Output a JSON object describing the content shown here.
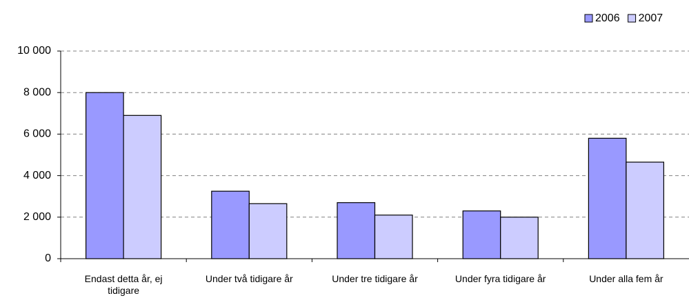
{
  "chart_data": {
    "type": "bar",
    "categories": [
      "Endast detta år, ej tidigare",
      "Under två tidigare år",
      "Under tre tidigare år",
      "Under fyra tidigare år",
      "Under alla fem år"
    ],
    "series": [
      {
        "name": "2006",
        "color": "#9999ff",
        "values": [
          8000,
          3250,
          2700,
          2300,
          5800
        ]
      },
      {
        "name": "2007",
        "color": "#ccccff",
        "values": [
          6900,
          2650,
          2100,
          2000,
          4650
        ]
      }
    ],
    "ylim": [
      0,
      10000
    ],
    "yticks": [
      {
        "value": 0,
        "label": "0"
      },
      {
        "value": 2000,
        "label": "2 000"
      },
      {
        "value": 4000,
        "label": "4 000"
      },
      {
        "value": 6000,
        "label": "6 000"
      },
      {
        "value": 8000,
        "label": "8 000"
      },
      {
        "value": 10000,
        "label": "10 000"
      }
    ],
    "grid": true,
    "legend": "top-right"
  }
}
